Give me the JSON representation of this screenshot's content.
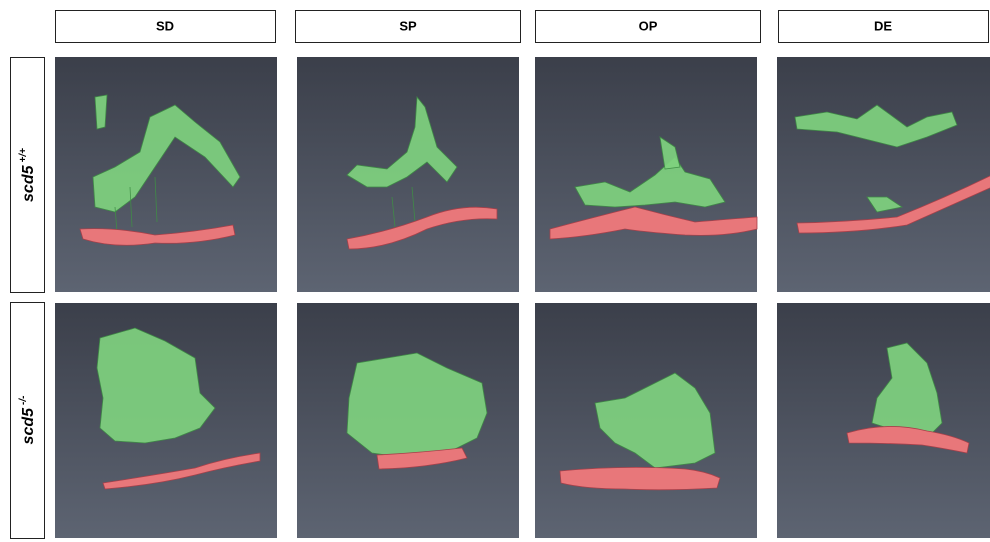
{
  "columns": [
    "SD",
    "SP",
    "OP",
    "DE"
  ],
  "rows": [
    {
      "gene": "scd5",
      "genotype": "+/+"
    },
    {
      "gene": "scd5",
      "genotype": "-/-"
    }
  ]
}
